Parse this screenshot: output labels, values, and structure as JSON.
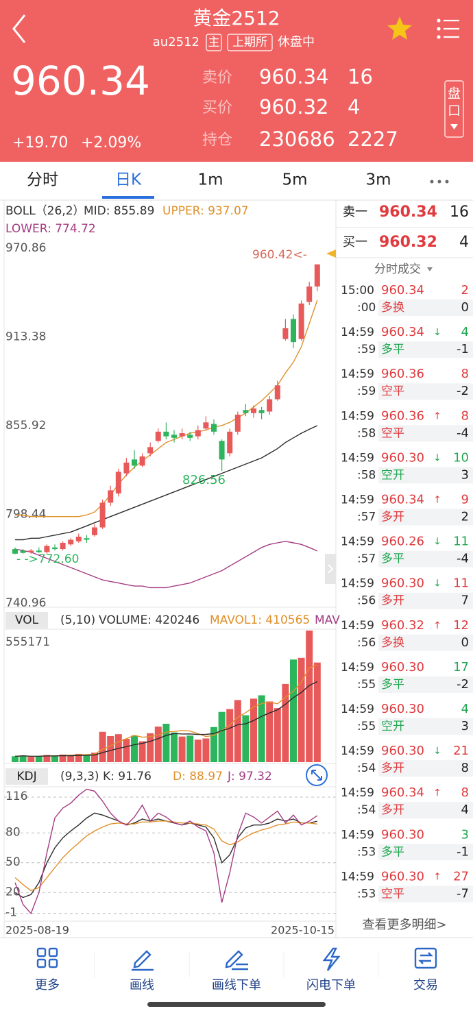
{
  "header": {
    "title": "黄金2512",
    "code": "au2512",
    "tags": [
      "主",
      "上期所"
    ],
    "status": "休盘中",
    "price": "960.34",
    "change": "+19.70",
    "change_pct": "+2.09%",
    "quotes": [
      {
        "label": "卖价",
        "price": "960.34",
        "volume": "16"
      },
      {
        "label": "买价",
        "price": "960.32",
        "volume": "4"
      },
      {
        "label": "持仓",
        "price": "230686",
        "volume": "2227"
      }
    ],
    "book_button": [
      "盘",
      "口"
    ]
  },
  "tabs": [
    "分时",
    "日K",
    "1m",
    "5m",
    "3m"
  ],
  "active_tab": 1,
  "chart_data": [
    {
      "type": "candlestick",
      "categories": [
        "2025-08-19",
        null,
        null,
        null,
        null,
        null,
        null,
        null,
        null,
        null,
        null,
        null,
        null,
        null,
        null,
        null,
        null,
        null,
        null,
        null,
        null,
        null,
        null,
        null,
        null,
        null,
        null,
        null,
        null,
        null,
        null,
        null,
        null,
        null,
        null,
        null,
        null,
        null,
        "2025-10-15"
      ],
      "open": [
        776,
        775,
        774,
        775,
        774,
        777,
        776,
        779,
        781,
        783,
        785,
        790,
        806,
        812,
        825,
        834,
        830,
        838,
        846,
        852,
        850,
        849,
        850,
        849,
        854,
        857,
        846,
        838,
        852,
        866,
        864,
        866,
        865,
        873,
        912,
        925,
        912,
        936,
        946
      ],
      "close": [
        773,
        773.5,
        775,
        774,
        778,
        776,
        780,
        782,
        784,
        782,
        790,
        806,
        814,
        826,
        832,
        830,
        836,
        842,
        852,
        849,
        848,
        851,
        848,
        853,
        858,
        852,
        834,
        852,
        863,
        864,
        867,
        864,
        873,
        882,
        919,
        910,
        935,
        946,
        960.34
      ],
      "high": [
        777,
        776,
        776,
        777,
        779,
        779,
        781,
        783,
        786,
        785,
        792,
        808,
        817,
        828,
        835,
        840,
        838,
        845,
        854,
        858,
        853,
        854,
        852,
        856,
        862,
        860,
        847,
        854,
        865,
        870,
        869,
        868,
        875,
        885,
        925,
        928,
        937,
        949,
        960.42
      ],
      "low": [
        772.6,
        773,
        773,
        773.5,
        773,
        775,
        775,
        778,
        780,
        780,
        784,
        789,
        804,
        810,
        823,
        828,
        829,
        836,
        845,
        847,
        845,
        847,
        846,
        847,
        853,
        850,
        826.56,
        836,
        850,
        862,
        861,
        860,
        863,
        872,
        911,
        906,
        911,
        934,
        943
      ],
      "up_color": "#e8595a",
      "down_color": "#2db55d",
      "ylim": [
        740.96,
        970.86
      ],
      "yticks": [
        970.86,
        913.38,
        855.92,
        798.44,
        740.96
      ],
      "indicator_labels": [
        "BOLL（26,2）",
        "MID: 855.89",
        "UPPER: 937.07",
        "LOWER: 774.72"
      ],
      "lines": [
        {
          "color": "#2b2b2b",
          "values": [
            782,
            782,
            783,
            783,
            784,
            785,
            786,
            787,
            789,
            791,
            793,
            795,
            797,
            799,
            801,
            803,
            805,
            807,
            809,
            811,
            813,
            815,
            817,
            819,
            821,
            823,
            825,
            827,
            829,
            831,
            833,
            835,
            838,
            841,
            845,
            848,
            851,
            853.5,
            855.89
          ]
        },
        {
          "color": "#e0902a",
          "values": [
            798,
            798,
            797,
            797,
            797,
            797,
            797,
            797,
            797,
            798,
            800,
            805,
            811,
            818,
            824,
            829,
            833,
            837,
            841,
            845,
            847,
            849,
            851,
            852,
            853,
            855,
            856,
            858,
            861,
            864,
            868,
            872,
            877,
            882,
            890,
            897,
            907,
            922,
            937.07
          ]
        },
        {
          "color": "#a33a82",
          "values": [
            776,
            775,
            774,
            772,
            770,
            768,
            766,
            764,
            762,
            760,
            758,
            756,
            755,
            754,
            753,
            752,
            752,
            751,
            751,
            751,
            752,
            753,
            754,
            756,
            758,
            760,
            762,
            765,
            768,
            771,
            774,
            777,
            779,
            780,
            781,
            780,
            779,
            777,
            774.72
          ]
        }
      ],
      "annotations": [
        "960.42<-",
        "826.56",
        "- ->772.60"
      ]
    },
    {
      "type": "bar",
      "values": [
        25000,
        28000,
        22000,
        26000,
        30000,
        27000,
        32000,
        30000,
        35000,
        33000,
        40000,
        128000,
        110000,
        118000,
        98000,
        112000,
        88000,
        122000,
        150000,
        162000,
        125000,
        108000,
        112000,
        95000,
        100000,
        148000,
        212000,
        224000,
        262000,
        198000,
        268000,
        282000,
        256000,
        228000,
        330000,
        433000,
        440000,
        555171,
        420246
      ],
      "ylim": [
        0,
        555171
      ],
      "yticks": [
        555171
      ],
      "indicator_labels": [
        "VOL",
        "(5,10)",
        "VOLUME: 420246",
        "MAVOL1: 410565",
        "MAV"
      ],
      "lines": [
        {
          "color": "#e0902a",
          "values": [
            25000,
            26500,
            25000,
            25250,
            26200,
            26600,
            27400,
            29200,
            30800,
            31400,
            34000,
            53600,
            69200,
            85800,
            98800,
            113200,
            105200,
            107600,
            114000,
            126800,
            129400,
            133400,
            131400,
            120400,
            108000,
            112600,
            133400,
            157800,
            189200,
            208800,
            232800,
            246800,
            253200,
            246400,
            272800,
            299800,
            337400,
            397400,
            410565
          ]
        },
        {
          "color": "#2b2b2b",
          "values": [
            25000,
            26500,
            25000,
            25250,
            26200,
            26300,
            27100,
            27500,
            28300,
            28800,
            30300,
            40300,
            49100,
            58300,
            65100,
            73600,
            79200,
            88000,
            99500,
            112400,
            120900,
            118900,
            119100,
            116800,
            117000,
            120600,
            133000,
            143200,
            157900,
            161500,
            175800,
            193200,
            207600,
            221000,
            244000,
            272500,
            294100,
            323700,
            339700
          ]
        }
      ]
    },
    {
      "type": "line",
      "ylim": [
        -6,
        125
      ],
      "yticks": [
        116,
        80,
        50,
        20,
        -1
      ],
      "grid": true,
      "indicator_labels": [
        "KDJ",
        "(9,3,3)",
        "K: 91.76",
        "D: 88.97",
        "J: 97.32"
      ],
      "lines": [
        {
          "color": "#2b2b2b",
          "values": [
            20,
            15,
            18,
            30,
            50,
            65,
            75,
            82,
            88,
            95,
            100,
            98,
            95,
            92,
            88,
            90,
            94,
            92,
            94,
            92,
            90,
            88,
            90,
            88,
            86,
            75,
            50,
            58,
            75,
            85,
            88,
            88,
            90,
            94,
            92,
            94,
            90,
            90,
            91.76
          ]
        },
        {
          "color": "#e0902a",
          "values": [
            35,
            28,
            22,
            25,
            35,
            45,
            55,
            63,
            70,
            77,
            82,
            86,
            89,
            90,
            89,
            89,
            91,
            91,
            92,
            92,
            91,
            90,
            90,
            89,
            88,
            84,
            72,
            68,
            71,
            76,
            80,
            83,
            85,
            88,
            89,
            91,
            90,
            90,
            88.97
          ]
        },
        {
          "color": "#a33a82",
          "values": [
            30,
            8,
            -1,
            20,
            60,
            95,
            105,
            110,
            118,
            124,
            122,
            112,
            100,
            92,
            88,
            96,
            108,
            92,
            100,
            96,
            90,
            88,
            92,
            86,
            82,
            60,
            10,
            40,
            78,
            100,
            96,
            90,
            96,
            102,
            90,
            98,
            88,
            92,
            97.32
          ]
        }
      ]
    }
  ],
  "order_book": [
    {
      "label": "卖一",
      "price": "960.34",
      "volume": "16"
    },
    {
      "label": "买一",
      "price": "960.32",
      "volume": "4"
    }
  ],
  "trades_title": "分时成交",
  "trades": [
    {
      "time": "15:00",
      "sec": ":00",
      "price": "960.34",
      "volume": "2",
      "volume_color": "#e03a3e",
      "type": "多换",
      "type_color": "#e03a3e",
      "change": "0"
    },
    {
      "time": "14:59",
      "sec": ":59",
      "price": "960.34",
      "arrow": "↓",
      "arrow_color": "#1fa84f",
      "volume": "4",
      "volume_color": "#1fa84f",
      "type": "多平",
      "type_color": "#1fa84f",
      "change": "-1"
    },
    {
      "time": "14:59",
      "sec": ":59",
      "price": "960.36",
      "volume": "8",
      "volume_color": "#e03a3e",
      "type": "空平",
      "type_color": "#e03a3e",
      "change": "-2"
    },
    {
      "time": "14:59",
      "sec": ":58",
      "price": "960.36",
      "arrow": "↑",
      "arrow_color": "#e03a3e",
      "volume": "8",
      "volume_color": "#e03a3e",
      "type": "空平",
      "type_color": "#e03a3e",
      "change": "-4"
    },
    {
      "time": "14:59",
      "sec": ":58",
      "price": "960.30",
      "arrow": "↓",
      "arrow_color": "#1fa84f",
      "volume": "10",
      "volume_color": "#1fa84f",
      "type": "空开",
      "type_color": "#1fa84f",
      "change": "3"
    },
    {
      "time": "14:59",
      "sec": ":57",
      "price": "960.34",
      "arrow": "↑",
      "arrow_color": "#e03a3e",
      "volume": "9",
      "volume_color": "#e03a3e",
      "type": "多开",
      "type_color": "#e03a3e",
      "change": "2"
    },
    {
      "time": "14:59",
      "sec": ":57",
      "price": "960.26",
      "arrow": "↓",
      "arrow_color": "#1fa84f",
      "volume": "11",
      "volume_color": "#1fa84f",
      "type": "多平",
      "type_color": "#1fa84f",
      "change": "-4"
    },
    {
      "time": "14:59",
      "sec": ":56",
      "price": "960.30",
      "arrow": "↓",
      "arrow_color": "#1fa84f",
      "volume": "11",
      "volume_color": "#e03a3e",
      "type": "多开",
      "type_color": "#e03a3e",
      "change": "7"
    },
    {
      "time": "14:59",
      "sec": ":56",
      "price": "960.32",
      "arrow": "↑",
      "arrow_color": "#e03a3e",
      "volume": "12",
      "volume_color": "#e03a3e",
      "type": "多换",
      "type_color": "#e03a3e",
      "change": "0"
    },
    {
      "time": "14:59",
      "sec": ":55",
      "price": "960.30",
      "volume": "17",
      "volume_color": "#1fa84f",
      "type": "多平",
      "type_color": "#1fa84f",
      "change": "-2"
    },
    {
      "time": "14:59",
      "sec": ":55",
      "price": "960.30",
      "volume": "4",
      "volume_color": "#1fa84f",
      "type": "空开",
      "type_color": "#1fa84f",
      "change": "3"
    },
    {
      "time": "14:59",
      "sec": ":54",
      "price": "960.30",
      "arrow": "↓",
      "arrow_color": "#1fa84f",
      "volume": "21",
      "volume_color": "#e03a3e",
      "type": "多开",
      "type_color": "#e03a3e",
      "change": "8"
    },
    {
      "time": "14:59",
      "sec": ":54",
      "price": "960.34",
      "arrow": "↑",
      "arrow_color": "#e03a3e",
      "volume": "8",
      "volume_color": "#e03a3e",
      "type": "多开",
      "type_color": "#e03a3e",
      "change": "4"
    },
    {
      "time": "14:59",
      "sec": ":53",
      "price": "960.30",
      "volume": "3",
      "volume_color": "#1fa84f",
      "type": "多平",
      "type_color": "#1fa84f",
      "change": "-1"
    },
    {
      "time": "14:59",
      "sec": ":53",
      "price": "960.30",
      "arrow": "↑",
      "arrow_color": "#e03a3e",
      "volume": "27",
      "volume_color": "#e03a3e",
      "type": "空平",
      "type_color": "#e03a3e",
      "change": "-7"
    }
  ],
  "more_link": "查看更多明细>",
  "nav": [
    "更多",
    "画线",
    "画线下单",
    "闪电下单",
    "交易"
  ]
}
